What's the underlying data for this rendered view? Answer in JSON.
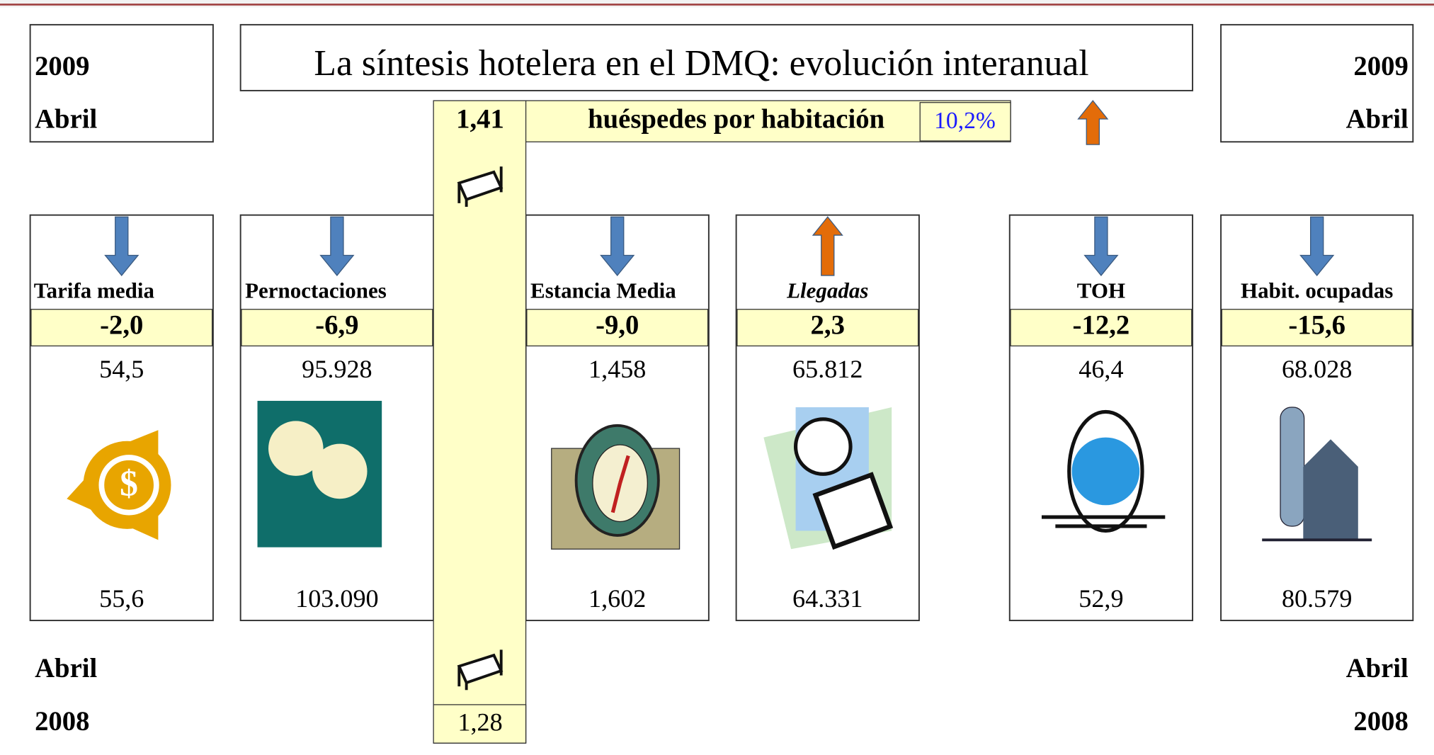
{
  "title": "La síntesis  hotelera en el DMQ: evolución interanual",
  "top_left": {
    "year": "2009",
    "month": "Abril"
  },
  "top_right": {
    "year": "2009",
    "month": "Abril"
  },
  "bottom_left": {
    "month": "Abril",
    "year": "2008"
  },
  "bottom_right": {
    "month": "Abril",
    "year": "2008"
  },
  "guests": {
    "value_2009": "1,41",
    "label": "huéspedes  por habitación",
    "change": "10,2%",
    "direction": "up",
    "value_2008": "1,28"
  },
  "indicators": [
    {
      "name": "Tarifa media",
      "change": "-2,0",
      "direction": "down",
      "value_2009": "54,5",
      "value_2008": "55,6"
    },
    {
      "name": "Pernoctaciones",
      "change": "-6,9",
      "direction": "down",
      "value_2009": "95.928",
      "value_2008": "103.090"
    },
    {
      "name": "Estancia Media",
      "change": "-9,0",
      "direction": "down",
      "value_2009": "1,458",
      "value_2008": "1,602"
    },
    {
      "name": "Llegadas",
      "change": "2,3",
      "direction": "up",
      "value_2009": "65.812",
      "value_2008": "64.331"
    },
    {
      "name": "TOH",
      "change": "-12,2",
      "direction": "down",
      "value_2009": "46,4",
      "value_2008": "52,9"
    },
    {
      "name": "Habit. ocupadas",
      "change": "-15,6",
      "direction": "down",
      "value_2009": "68.028",
      "value_2008": "80.579"
    }
  ]
}
